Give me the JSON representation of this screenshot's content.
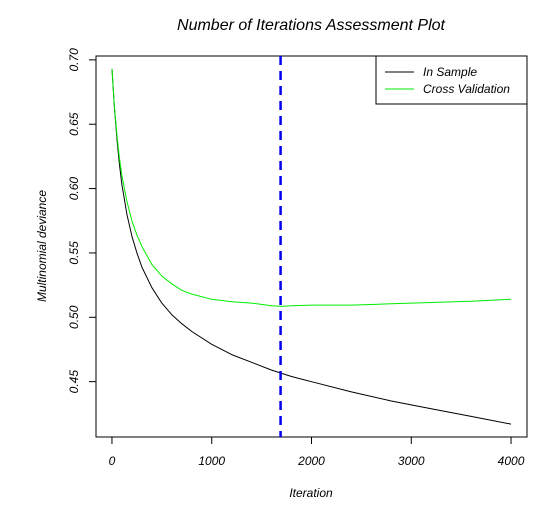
{
  "chart_data": {
    "type": "line",
    "title": "Number of Iterations Assessment Plot",
    "xlabel": "Iteration",
    "ylabel": "Multinomial deviance",
    "xlim": [
      -160,
      4160
    ],
    "ylim": [
      0.407,
      0.703
    ],
    "x_ticks": [
      0,
      1000,
      2000,
      3000,
      4000
    ],
    "y_ticks": [
      0.45,
      0.5,
      0.55,
      0.6,
      0.65,
      0.7
    ],
    "x_tick_labels": [
      "0",
      "1000",
      "2000",
      "3000",
      "4000"
    ],
    "y_tick_labels": [
      "0.45",
      "0.50",
      "0.55",
      "0.60",
      "0.65",
      "0.70"
    ],
    "grid": false,
    "legend_position": "top-right",
    "optimal_iteration": 1690,
    "optimal_line_color": "#0000ee",
    "series": [
      {
        "name": "In Sample",
        "color": "#000000",
        "x": [
          0,
          25,
          50,
          75,
          100,
          150,
          200,
          250,
          300,
          400,
          500,
          600,
          700,
          800,
          1000,
          1200,
          1400,
          1600,
          1800,
          2000,
          2400,
          2800,
          3200,
          3600,
          4000
        ],
        "y": [
          0.693,
          0.662,
          0.638,
          0.619,
          0.603,
          0.58,
          0.563,
          0.55,
          0.539,
          0.523,
          0.511,
          0.502,
          0.495,
          0.489,
          0.479,
          0.471,
          0.465,
          0.459,
          0.454,
          0.45,
          0.442,
          0.435,
          0.429,
          0.423,
          0.417
        ]
      },
      {
        "name": "Cross Validation",
        "color": "#00ee00",
        "x": [
          0,
          25,
          50,
          75,
          100,
          150,
          200,
          250,
          300,
          400,
          500,
          600,
          700,
          800,
          1000,
          1200,
          1400,
          1600,
          1700,
          1800,
          2000,
          2400,
          2800,
          3200,
          3600,
          4000
        ],
        "y": [
          0.693,
          0.663,
          0.641,
          0.624,
          0.61,
          0.59,
          0.575,
          0.564,
          0.555,
          0.541,
          0.532,
          0.526,
          0.521,
          0.518,
          0.514,
          0.512,
          0.511,
          0.509,
          0.5085,
          0.509,
          0.5095,
          0.5095,
          0.5105,
          0.5115,
          0.5125,
          0.514
        ]
      }
    ]
  }
}
